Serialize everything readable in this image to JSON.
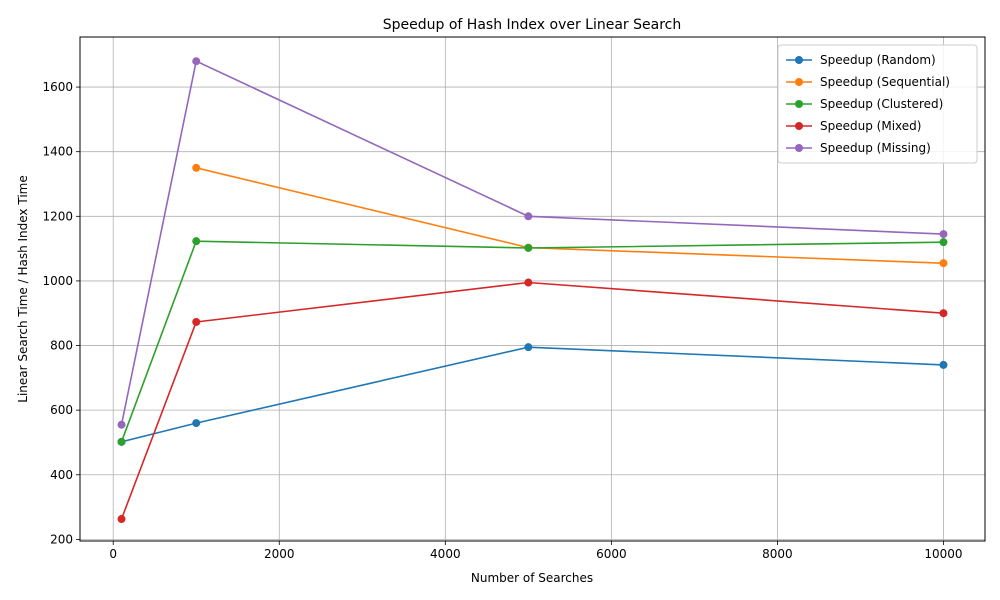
{
  "chart_data": {
    "type": "line",
    "title": "Speedup of Hash Index over Linear Search",
    "xlabel": "Number of Searches",
    "ylabel": "Linear Search Time / Hash Index Time",
    "x": [
      100,
      1000,
      5000,
      10000
    ],
    "xlim": [
      -400,
      10500
    ],
    "ylim": [
      195,
      1755
    ],
    "xticks": [
      0,
      2000,
      4000,
      6000,
      8000,
      10000
    ],
    "yticks": [
      200,
      400,
      600,
      800,
      1000,
      1200,
      1400,
      1600
    ],
    "grid": true,
    "legend_position": "top-right",
    "series": [
      {
        "name": "Speedup (Random)",
        "color": "#1f77b4",
        "values": [
          502,
          560,
          795,
          740
        ]
      },
      {
        "name": "Speedup (Sequential)",
        "color": "#ff7f0e",
        "values": [
          null,
          1350,
          1103,
          1055
        ]
      },
      {
        "name": "Speedup (Clustered)",
        "color": "#2ca02c",
        "values": [
          502,
          1123,
          1102,
          1120
        ]
      },
      {
        "name": "Speedup (Mixed)",
        "color": "#d62728",
        "values": [
          263,
          873,
          995,
          900
        ]
      },
      {
        "name": "Speedup (Missing)",
        "color": "#9467bd",
        "values": [
          555,
          1680,
          1200,
          1145
        ]
      }
    ]
  }
}
